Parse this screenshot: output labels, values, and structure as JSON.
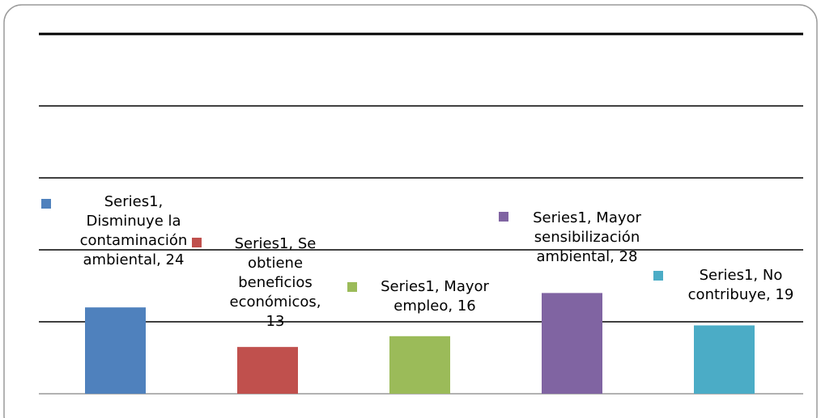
{
  "chart_data": {
    "type": "bar",
    "categories": [
      "Disminuye la contaminación ambiental",
      "Se obtiene beneficios económicos",
      "Mayor empleo",
      "Mayor sensibilización ambiental",
      "No contribuye"
    ],
    "series": [
      {
        "name": "Series1",
        "colors": [
          "#4f81bd",
          "#c0504d",
          "#9bbb59",
          "#8064a2",
          "#4bacc6"
        ],
        "values": [
          24,
          13,
          16,
          28,
          19
        ],
        "value_labels": [
          "Series1, Disminuye la contaminación ambiental, 24",
          "Series1, Se obtiene beneficios económicos, 13",
          "Series1, Mayor empleo, 16",
          "Series1, Mayor sensibilización ambiental, 28",
          "Series1, No contribuye, 19"
        ]
      }
    ],
    "ylim": [
      0,
      100
    ],
    "yticks": [
      0,
      20,
      40,
      60,
      80,
      100
    ],
    "grid": true
  }
}
